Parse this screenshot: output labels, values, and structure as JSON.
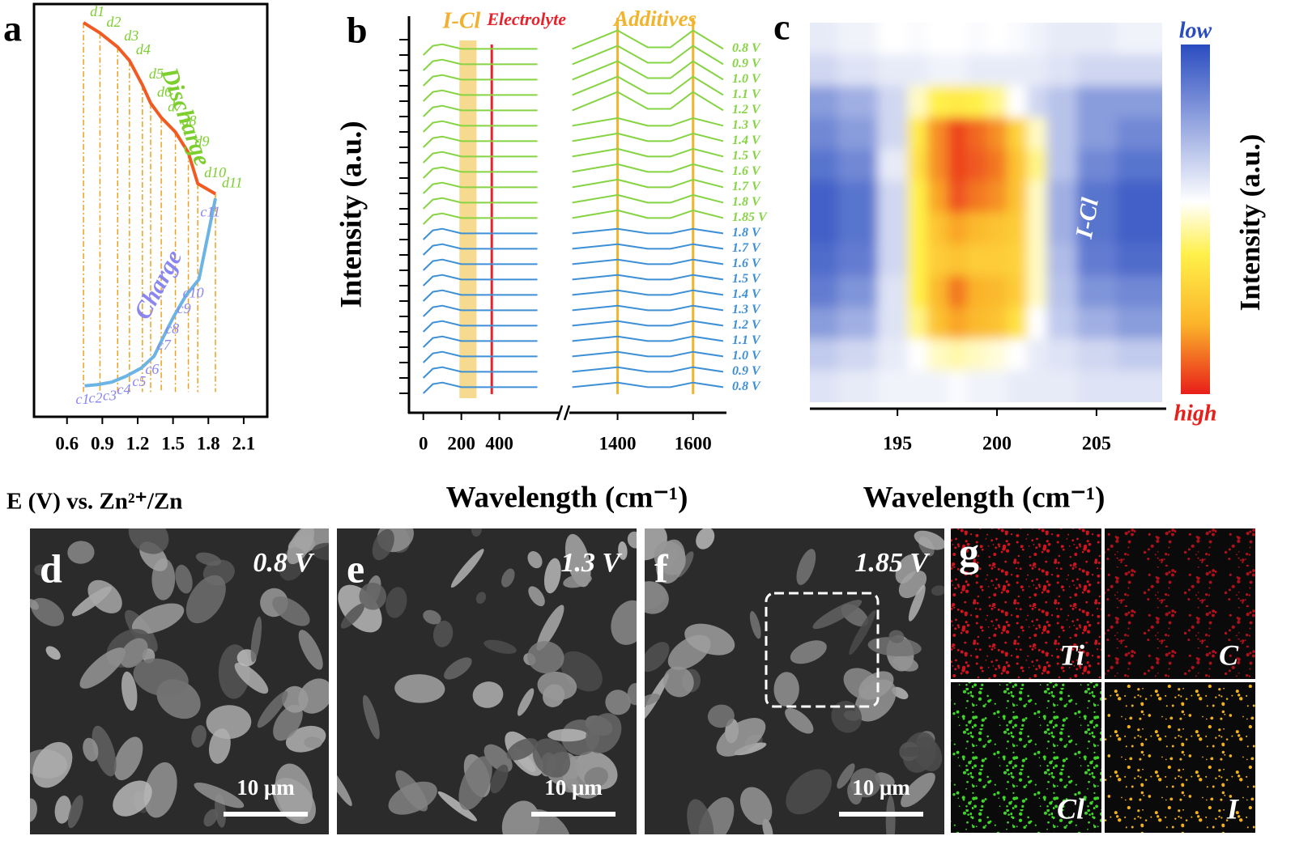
{
  "chart_data": [
    {
      "type": "line",
      "panel": "a",
      "xlabel": "E (V) vs. Zn²⁺/Zn",
      "xlim": [
        0.32,
        2.3
      ],
      "xticks": [
        0.6,
        0.9,
        1.2,
        1.5,
        1.8,
        2.1
      ],
      "ylim": [
        0,
        100
      ],
      "series": [
        {
          "name": "Discharge",
          "color": "#f15a22",
          "label_color": "#7ccf2e",
          "x": [
            0.74,
            0.88,
            1.03,
            1.13,
            1.24,
            1.31,
            1.4,
            1.52,
            1.63,
            1.71,
            1.86
          ],
          "values": [
            95.5,
            93,
            89.6,
            86.3,
            80.4,
            76,
            72.5,
            69,
            64,
            56.5,
            54
          ],
          "point_labels": [
            "d1",
            "d2",
            "d3",
            "d4",
            "d5",
            "d6",
            "d7",
            "d8",
            "d9",
            "d10",
            "d11"
          ]
        },
        {
          "name": "Charge",
          "color": "#6cb4e4",
          "label_color": "#8a86f0",
          "x": [
            0.75,
            0.86,
            0.98,
            1.1,
            1.23,
            1.34,
            1.44,
            1.51,
            1.61,
            1.72,
            1.86
          ],
          "values": [
            7.5,
            7.8,
            8.4,
            9.8,
            11.8,
            14.7,
            20.6,
            24.5,
            29.4,
            33.3,
            52.9
          ],
          "point_labels": [
            "c1",
            "c2",
            "c3",
            "c4",
            "c5",
            "c6",
            "c7",
            "c8",
            "c9",
            "c10",
            "c11"
          ]
        }
      ]
    },
    {
      "type": "line",
      "panel": "b",
      "xlabel": "Wavelength (cm⁻¹)",
      "ylabel": "Intensity (a.u.)",
      "xlim_segments": [
        [
          -20,
          700
        ],
        [
          1270,
          1680
        ]
      ],
      "xticks": [
        0,
        200,
        400,
        1400,
        1600
      ],
      "ylim": [
        -1,
        24
      ],
      "yticks": [
        0,
        1,
        2,
        3,
        4,
        5,
        6,
        7,
        8,
        9,
        10,
        11,
        12,
        13,
        14,
        15,
        16,
        17,
        18,
        19,
        20,
        21,
        22,
        23
      ],
      "highlight": {
        "x_range": [
          190,
          280
        ],
        "label": "I-Cl",
        "color": "#f4d47c"
      },
      "electrolyte": {
        "x": 360,
        "label": "Electrolyte",
        "color": "#e8212b"
      },
      "additives": {
        "x": [
          1400,
          1600
        ],
        "label": "Additives",
        "color": "#f2b42c"
      },
      "x": [
        0,
        50,
        100,
        200,
        400,
        600,
        1280,
        1400,
        1480,
        1540,
        1600,
        1680
      ],
      "series": [
        {
          "name": "0.8 V",
          "color": "#86d443",
          "values": [
            22,
            22.6,
            22.7,
            22.4,
            22.4,
            22.4,
            22.4,
            23.6,
            22.5,
            22.5,
            23.6,
            22.4
          ]
        },
        {
          "name": "0.9 V",
          "color": "#86d443",
          "values": [
            21,
            21.6,
            21.7,
            21.4,
            21.4,
            21.4,
            21.4,
            22.6,
            21.5,
            21.5,
            22.6,
            21.4
          ]
        },
        {
          "name": "1.0 V",
          "color": "#86d443",
          "values": [
            20,
            20.6,
            20.7,
            20.4,
            20.4,
            20.4,
            20.4,
            21.6,
            20.5,
            20.5,
            21.6,
            20.4
          ]
        },
        {
          "name": "1.1 V",
          "color": "#86d443",
          "values": [
            19,
            19.6,
            19.7,
            19.4,
            19.4,
            19.4,
            19.4,
            20.6,
            19.5,
            19.5,
            20.6,
            19.4
          ]
        },
        {
          "name": "1.2 V",
          "color": "#86d443",
          "values": [
            18,
            18.6,
            18.7,
            18.4,
            18.4,
            18.4,
            18.4,
            19.6,
            18.5,
            18.5,
            19.6,
            18.4
          ]
        },
        {
          "name": "1.3 V",
          "color": "#86d443",
          "values": [
            17,
            17.6,
            17.7,
            17.4,
            17.4,
            17.4,
            17.4,
            17.9,
            17.4,
            17.4,
            17.9,
            17.4
          ]
        },
        {
          "name": "1.4 V",
          "color": "#86d443",
          "values": [
            16,
            16.6,
            16.7,
            16.4,
            16.4,
            16.4,
            16.4,
            16.9,
            16.4,
            16.4,
            16.9,
            16.4
          ]
        },
        {
          "name": "1.5 V",
          "color": "#86d443",
          "values": [
            15,
            15.6,
            15.7,
            15.4,
            15.4,
            15.4,
            15.4,
            15.9,
            15.4,
            15.4,
            15.9,
            15.4
          ]
        },
        {
          "name": "1.6 V",
          "color": "#86d443",
          "values": [
            14,
            14.6,
            14.7,
            14.4,
            14.4,
            14.4,
            14.4,
            14.9,
            14.4,
            14.4,
            14.9,
            14.4
          ]
        },
        {
          "name": "1.7 V",
          "color": "#86d443",
          "values": [
            13,
            13.6,
            13.7,
            13.4,
            13.4,
            13.4,
            13.4,
            13.9,
            13.4,
            13.4,
            13.9,
            13.4
          ]
        },
        {
          "name": "1.8 V",
          "color": "#86d443",
          "values": [
            12,
            12.6,
            12.7,
            12.4,
            12.4,
            12.4,
            12.4,
            12.9,
            12.4,
            12.4,
            12.9,
            12.4
          ]
        },
        {
          "name": "1.85 V",
          "color": "#86d443",
          "values": [
            11,
            11.6,
            11.7,
            11.4,
            11.4,
            11.4,
            11.4,
            11.9,
            11.4,
            11.4,
            11.9,
            11.4
          ]
        },
        {
          "name": "1.8 V",
          "color": "#3d8fd6",
          "values": [
            10,
            10.6,
            10.7,
            10.4,
            10.4,
            10.4,
            10.4,
            10.7,
            10.4,
            10.4,
            10.7,
            10.4
          ]
        },
        {
          "name": "1.7 V",
          "color": "#3d8fd6",
          "values": [
            9,
            9.6,
            9.7,
            9.4,
            9.4,
            9.4,
            9.4,
            9.7,
            9.4,
            9.4,
            9.7,
            9.4
          ]
        },
        {
          "name": "1.6 V",
          "color": "#3d8fd6",
          "values": [
            8,
            8.6,
            8.7,
            8.4,
            8.4,
            8.4,
            8.4,
            8.7,
            8.4,
            8.4,
            8.7,
            8.4
          ]
        },
        {
          "name": "1.5 V",
          "color": "#3d8fd6",
          "values": [
            7,
            7.6,
            7.7,
            7.4,
            7.4,
            7.4,
            7.4,
            7.7,
            7.4,
            7.4,
            7.7,
            7.4
          ]
        },
        {
          "name": "1.4 V",
          "color": "#3d8fd6",
          "values": [
            6,
            6.6,
            6.7,
            6.4,
            6.4,
            6.4,
            6.4,
            6.7,
            6.4,
            6.4,
            6.7,
            6.4
          ]
        },
        {
          "name": "1.3 V",
          "color": "#3d8fd6",
          "values": [
            5,
            5.6,
            5.7,
            5.4,
            5.4,
            5.4,
            5.4,
            5.7,
            5.4,
            5.4,
            5.7,
            5.4
          ]
        },
        {
          "name": "1.2 V",
          "color": "#3d8fd6",
          "values": [
            4,
            4.6,
            4.7,
            4.4,
            4.4,
            4.4,
            4.4,
            4.7,
            4.4,
            4.4,
            4.7,
            4.4
          ]
        },
        {
          "name": "1.1 V",
          "color": "#3d8fd6",
          "values": [
            3,
            3.6,
            3.7,
            3.4,
            3.4,
            3.4,
            3.4,
            3.7,
            3.4,
            3.4,
            3.7,
            3.4
          ]
        },
        {
          "name": "1.0 V",
          "color": "#3d8fd6",
          "values": [
            2,
            2.6,
            2.7,
            2.4,
            2.4,
            2.4,
            2.4,
            2.7,
            2.4,
            2.4,
            2.7,
            2.4
          ]
        },
        {
          "name": "0.9 V",
          "color": "#3d8fd6",
          "values": [
            1,
            1.6,
            1.7,
            1.4,
            1.4,
            1.4,
            1.4,
            1.7,
            1.4,
            1.4,
            1.7,
            1.4
          ]
        },
        {
          "name": "0.8 V",
          "color": "#3d8fd6",
          "values": [
            0,
            0.6,
            0.7,
            0.4,
            0.4,
            0.4,
            0.4,
            0.7,
            0.4,
            0.4,
            0.7,
            0.4
          ]
        }
      ]
    },
    {
      "type": "heatmap",
      "panel": "c",
      "xlabel": "Wavelength (cm⁻¹)",
      "colorbar_label": "Intensity (a.u.)",
      "annotation": "I-Cl",
      "low_label": "low",
      "high_label": "high",
      "xlim": [
        190.6,
        208.3
      ],
      "xticks": [
        195,
        200,
        205
      ],
      "zlim": [
        0,
        1
      ],
      "colormap": [
        {
          "value": 0,
          "color": "#2a4cc0"
        },
        {
          "value": 0.45,
          "color": "#ffffff"
        },
        {
          "value": 0.6,
          "color": "#fff04a"
        },
        {
          "value": 0.8,
          "color": "#fbb42a"
        },
        {
          "value": 1,
          "color": "#e81e1a"
        }
      ],
      "x": [
        191,
        193,
        195,
        196,
        197,
        198,
        199,
        200,
        201,
        202,
        203,
        205,
        207
      ],
      "values": [
        [
          0.4,
          0.42,
          0.45,
          0.44,
          0.45,
          0.45,
          0.44,
          0.45,
          0.44,
          0.42,
          0.4,
          0.4,
          0.42
        ],
        [
          0.35,
          0.38,
          0.4,
          0.4,
          0.42,
          0.42,
          0.4,
          0.4,
          0.4,
          0.4,
          0.38,
          0.35,
          0.35
        ],
        [
          0.2,
          0.25,
          0.35,
          0.5,
          0.6,
          0.62,
          0.6,
          0.55,
          0.45,
          0.35,
          0.3,
          0.2,
          0.2
        ],
        [
          0.15,
          0.2,
          0.35,
          0.62,
          0.85,
          0.95,
          0.9,
          0.85,
          0.7,
          0.5,
          0.3,
          0.2,
          0.15
        ],
        [
          0.1,
          0.15,
          0.4,
          0.65,
          0.85,
          0.95,
          0.92,
          0.88,
          0.75,
          0.55,
          0.3,
          0.15,
          0.1
        ],
        [
          0.05,
          0.1,
          0.35,
          0.6,
          0.82,
          0.93,
          0.88,
          0.85,
          0.75,
          0.5,
          0.25,
          0.1,
          0.05
        ],
        [
          0.05,
          0.1,
          0.35,
          0.6,
          0.75,
          0.82,
          0.78,
          0.75,
          0.72,
          0.5,
          0.25,
          0.1,
          0.05
        ],
        [
          0.08,
          0.12,
          0.35,
          0.6,
          0.72,
          0.75,
          0.72,
          0.72,
          0.7,
          0.5,
          0.28,
          0.12,
          0.08
        ],
        [
          0.12,
          0.18,
          0.38,
          0.6,
          0.78,
          0.88,
          0.8,
          0.78,
          0.72,
          0.5,
          0.3,
          0.18,
          0.15
        ],
        [
          0.2,
          0.25,
          0.38,
          0.55,
          0.75,
          0.82,
          0.78,
          0.75,
          0.65,
          0.45,
          0.32,
          0.25,
          0.2
        ],
        [
          0.32,
          0.35,
          0.4,
          0.45,
          0.5,
          0.52,
          0.5,
          0.48,
          0.45,
          0.4,
          0.38,
          0.35,
          0.32
        ],
        [
          0.38,
          0.4,
          0.42,
          0.42,
          0.42,
          0.44,
          0.42,
          0.42,
          0.4,
          0.4,
          0.4,
          0.38,
          0.38
        ]
      ]
    }
  ],
  "images": [
    {
      "panel": "d",
      "voltage": "0.8 V",
      "scale_bar": "10 μm"
    },
    {
      "panel": "e",
      "voltage": "1.3 V",
      "scale_bar": "10 μm"
    },
    {
      "panel": "f",
      "voltage": "1.85 V",
      "scale_bar": "10 μm"
    }
  ],
  "eds": {
    "panel": "g",
    "elements": [
      {
        "name": "Ti",
        "color": "#d0141e"
      },
      {
        "name": "C",
        "color": "#b0101a"
      },
      {
        "name": "Cl",
        "color": "#3fd42a"
      },
      {
        "name": "I",
        "color": "#f0b020"
      }
    ]
  }
}
